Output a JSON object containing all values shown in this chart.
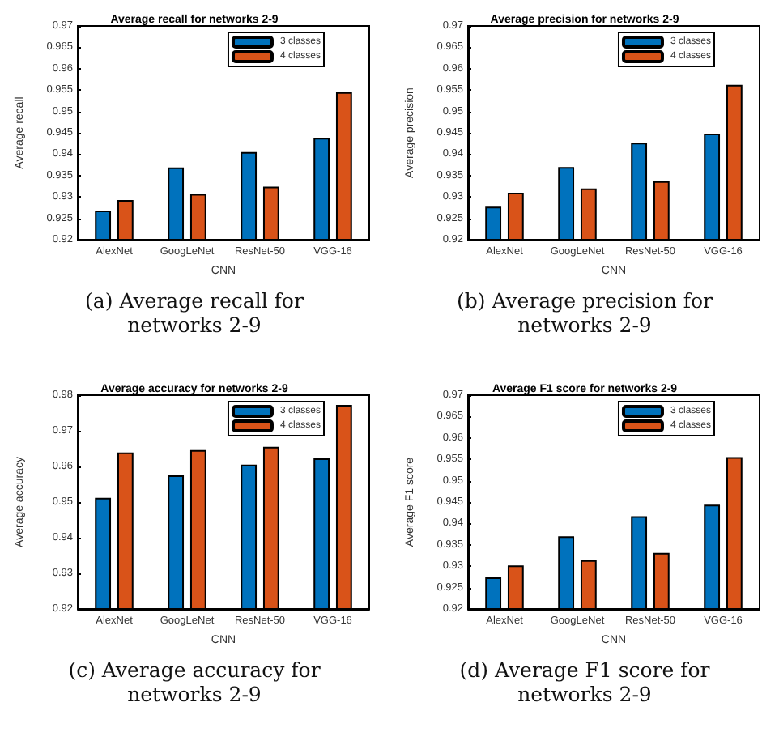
{
  "chart_data": [
    {
      "type": "bar",
      "title": "Average recall for networks 2-9",
      "xlabel": "CNN",
      "ylabel": "Average recall",
      "categories": [
        "AlexNet",
        "GoogLeNet",
        "ResNet-50",
        "VGG-16"
      ],
      "series": [
        {
          "name": "3 classes",
          "color": "#0072bd",
          "values": [
            0.9268,
            0.9369,
            0.9405,
            0.9438
          ]
        },
        {
          "name": "4 classes",
          "color": "#d95319",
          "values": [
            0.9293,
            0.9307,
            0.9324,
            0.9545
          ]
        }
      ],
      "ylim": [
        0.92,
        0.97
      ],
      "yticks": [
        0.92,
        0.925,
        0.93,
        0.935,
        0.94,
        0.945,
        0.95,
        0.955,
        0.96,
        0.965,
        0.97
      ],
      "grid": false,
      "legend": "top right",
      "annotations": [
        "(a) Average recall for networks 2-9"
      ]
    },
    {
      "type": "bar",
      "title": "Average precision for networks 2-9",
      "xlabel": "CNN",
      "ylabel": "Average precision",
      "categories": [
        "AlexNet",
        "GoogLeNet",
        "ResNet-50",
        "VGG-16"
      ],
      "series": [
        {
          "name": "3 classes",
          "color": "#0072bd",
          "values": [
            0.9277,
            0.937,
            0.9427,
            0.9448
          ]
        },
        {
          "name": "4 classes",
          "color": "#d95319",
          "values": [
            0.931,
            0.932,
            0.9337,
            0.9562
          ]
        }
      ],
      "ylim": [
        0.92,
        0.97
      ],
      "yticks": [
        0.92,
        0.925,
        0.93,
        0.935,
        0.94,
        0.945,
        0.95,
        0.955,
        0.96,
        0.965,
        0.97
      ],
      "grid": false,
      "legend": "top right",
      "annotations": [
        "(b) Average precision for networks 2-9"
      ]
    },
    {
      "type": "bar",
      "title": "Average accuracy for networks 2-9",
      "xlabel": "CNN",
      "ylabel": "Average accuracy",
      "categories": [
        "AlexNet",
        "GoogLeNet",
        "ResNet-50",
        "VGG-16"
      ],
      "series": [
        {
          "name": "3 classes",
          "color": "#0072bd",
          "values": [
            0.9512,
            0.9575,
            0.9605,
            0.9623
          ]
        },
        {
          "name": "4 classes",
          "color": "#d95319",
          "values": [
            0.9639,
            0.9646,
            0.9655,
            0.9773
          ]
        }
      ],
      "ylim": [
        0.92,
        0.98
      ],
      "yticks": [
        0.92,
        0.93,
        0.94,
        0.95,
        0.96,
        0.97,
        0.98
      ],
      "grid": false,
      "legend": "top right",
      "annotations": [
        "(c) Average accuracy for networks 2-9"
      ]
    },
    {
      "type": "bar",
      "title": "Average F1 score for networks 2-9",
      "xlabel": "CNN",
      "ylabel": "Average F1 score",
      "categories": [
        "AlexNet",
        "GoogLeNet",
        "ResNet-50",
        "VGG-16"
      ],
      "series": [
        {
          "name": "3 classes",
          "color": "#0072bd",
          "values": [
            0.9274,
            0.937,
            0.9417,
            0.9444
          ]
        },
        {
          "name": "4 classes",
          "color": "#d95319",
          "values": [
            0.9302,
            0.9314,
            0.9331,
            0.9555
          ]
        }
      ],
      "ylim": [
        0.92,
        0.97
      ],
      "yticks": [
        0.92,
        0.925,
        0.93,
        0.935,
        0.94,
        0.945,
        0.95,
        0.955,
        0.96,
        0.965,
        0.97
      ],
      "grid": false,
      "legend": "top right",
      "annotations": [
        "(d) Average F1 score for networks 2-9"
      ]
    }
  ]
}
